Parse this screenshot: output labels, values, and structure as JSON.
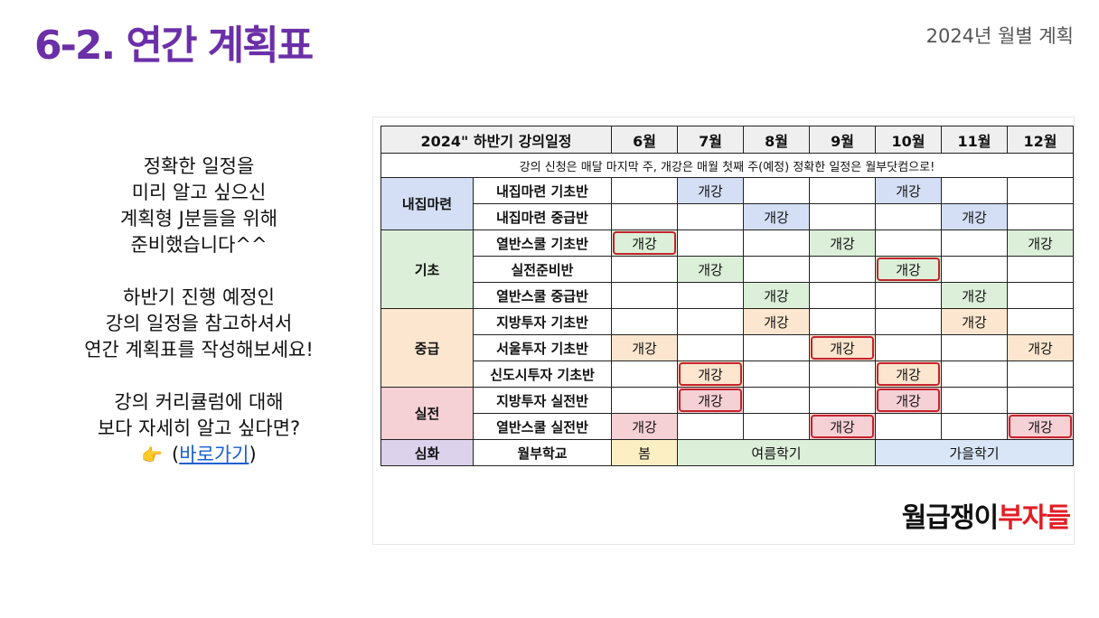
{
  "header": {
    "title": "6-2. 연간 계획표",
    "subtitle": "2024년 월별 계획"
  },
  "intro": {
    "para1": [
      "정확한 일정을",
      "미리 알고 싶으신",
      "계획형 J분들을 위해",
      "준비했습니다^^"
    ],
    "para2": [
      "하반기 진행 예정인",
      "강의 일정을 참고하셔서",
      "연간 계획표를 작성해보세요!"
    ],
    "para3": [
      "강의 커리큘럼에 대해",
      "보다 자세히 알고 싶다면?"
    ],
    "hand_icon": "👉",
    "link_open": "(",
    "link_text": "바로가기",
    "link_close": ")"
  },
  "schedule": {
    "header_title": "2024\" 하반기 강의일정",
    "months": [
      "6월",
      "7월",
      "8월",
      "9월",
      "10월",
      "11월",
      "12월"
    ],
    "note": "강의 신청은 매달 마지막 주, 개강은 매월 첫째 주(예정) 정확한 일정은 월부닷컴으로!",
    "open_label": "개강",
    "categories": {
      "home": "내집마련",
      "basic": "기초",
      "mid": "중급",
      "real": "실전",
      "deep": "심화"
    },
    "courses": [
      "내집마련 기초반",
      "내집마련 중급반",
      "열반스쿨 기초반",
      "실전준비반",
      "열반스쿨 중급반",
      "지방투자 기초반",
      "서울투자 기초반",
      "신도시투자 기초반",
      "지방투자 실전반",
      "열반스쿨 실전반",
      "월부학교"
    ],
    "school_terms": [
      "봄",
      "여름학기",
      "가을학기"
    ]
  },
  "brand": {
    "part1": "월급쟁이",
    "part2": "부자들"
  },
  "colors": {
    "title": "#6b2fa8",
    "highlight": "#c4232b",
    "brand_red": "#e21d24",
    "link": "#1a5fd0"
  }
}
